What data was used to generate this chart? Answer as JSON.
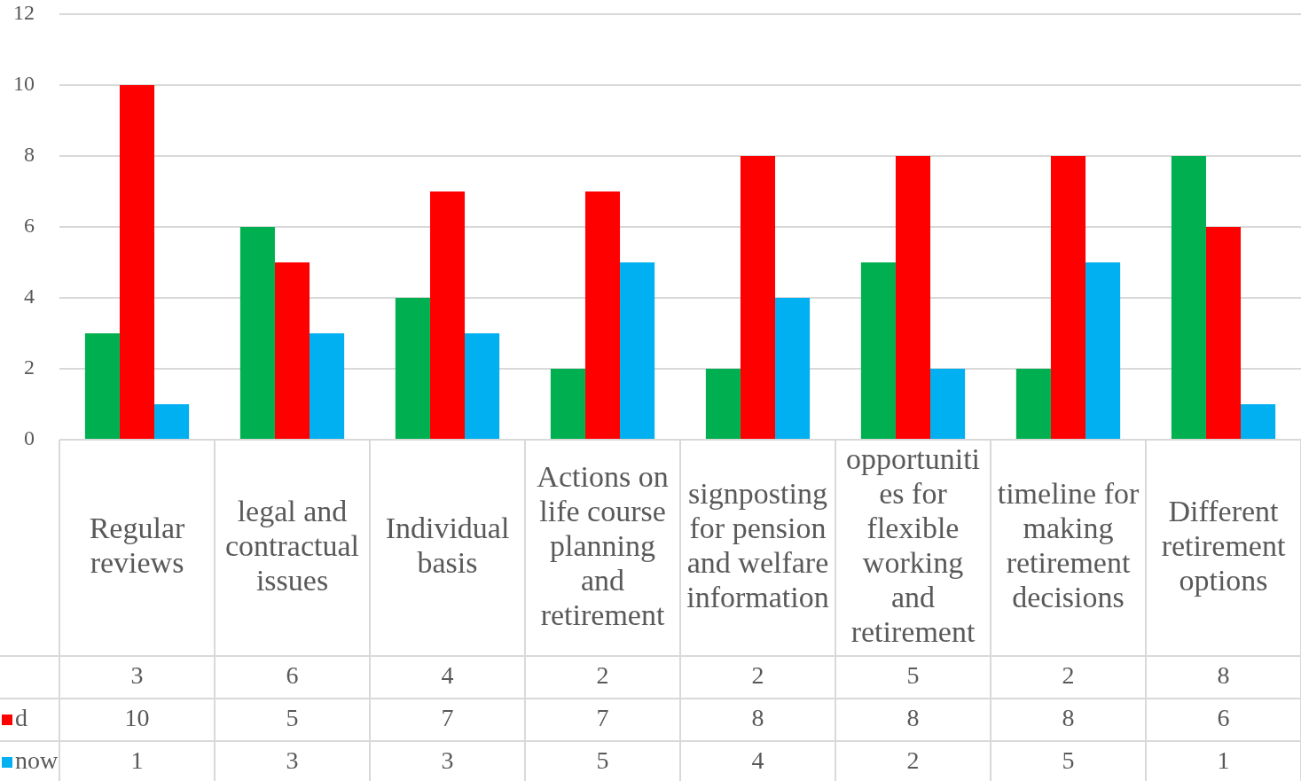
{
  "chart_data": {
    "type": "bar",
    "categories": [
      "Regular reviews",
      "legal and contractual issues",
      "Individual basis",
      "Actions on life course planning and retirement",
      "signposting for pension and welfare information",
      "opportunities for flexible working and retirement",
      "timeline for making retirement decisions",
      "Different retirement options"
    ],
    "series": [
      {
        "color": "#00b050",
        "values": [
          3,
          6,
          4,
          2,
          2,
          5,
          2,
          8
        ]
      },
      {
        "name": "d",
        "color": "#ff0000",
        "values": [
          10,
          5,
          7,
          7,
          8,
          8,
          8,
          6
        ]
      },
      {
        "name": "now",
        "color": "#00b0f0",
        "values": [
          1,
          3,
          3,
          5,
          4,
          2,
          5,
          1
        ]
      }
    ],
    "ylim": [
      0,
      12
    ],
    "yticks": [
      0,
      2,
      4,
      6,
      8,
      10,
      12
    ],
    "grid": "y",
    "legend": "bottom left",
    "data_labels": true
  }
}
